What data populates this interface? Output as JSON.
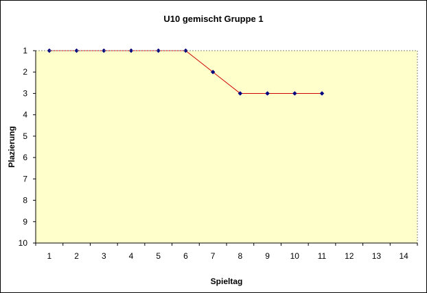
{
  "chart_data": {
    "type": "line",
    "title": "U10 gemischt Gruppe 1",
    "xlabel": "Spieltag",
    "ylabel": "Plazierung",
    "x_categories": [
      "1",
      "2",
      "3",
      "4",
      "5",
      "6",
      "7",
      "8",
      "9",
      "10",
      "11",
      "12",
      "13",
      "14"
    ],
    "y_ticks": [
      "1",
      "2",
      "3",
      "4",
      "5",
      "6",
      "7",
      "8",
      "9",
      "10"
    ],
    "ylim": [
      1,
      10
    ],
    "y_inverted": true,
    "grid": false,
    "series": [
      {
        "x": [
          1,
          2,
          3,
          4,
          5,
          6,
          7,
          8,
          9,
          10,
          11
        ],
        "values": [
          1,
          1,
          1,
          1,
          1,
          1,
          2,
          3,
          3,
          3,
          3
        ]
      }
    ],
    "colors": {
      "plot_area": "#ffffcc",
      "line": "#cc0000",
      "marker": "#000080"
    }
  }
}
